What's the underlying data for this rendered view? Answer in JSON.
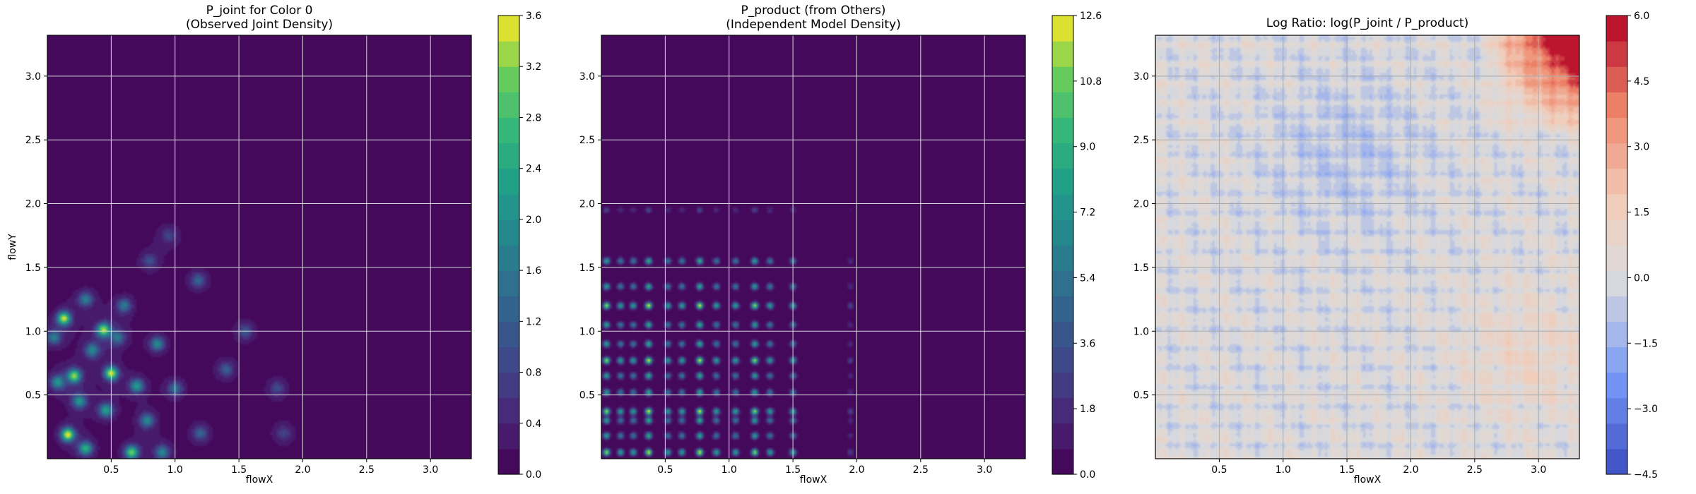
{
  "chart_data": [
    {
      "type": "heatmap",
      "title_line1": "P_joint for Color 0",
      "title_line2": "(Observed Joint Density)",
      "xlabel": "flowX",
      "ylabel": "flowY",
      "xlim": [
        0.0,
        3.32
      ],
      "ylim": [
        0.0,
        3.32
      ],
      "xticks": [
        "0.5",
        "1.0",
        "1.5",
        "2.0",
        "2.5",
        "3.0"
      ],
      "yticks": [
        "0.5",
        "1.0",
        "1.5",
        "2.0",
        "2.5",
        "3.0"
      ],
      "grid": true,
      "colormap": "viridis",
      "colorbar_range": [
        0.0,
        3.6
      ],
      "colorbar_ticks": [
        "0.0",
        "0.4",
        "0.8",
        "1.2",
        "1.6",
        "2.0",
        "2.4",
        "2.8",
        "3.2",
        "3.6"
      ],
      "peaks": [
        {
          "x": 0.13,
          "y": 1.1,
          "v": 3.2
        },
        {
          "x": 0.44,
          "y": 1.01,
          "v": 3.0
        },
        {
          "x": 0.21,
          "y": 0.65,
          "v": 2.9
        },
        {
          "x": 0.5,
          "y": 0.67,
          "v": 3.3
        },
        {
          "x": 0.16,
          "y": 0.19,
          "v": 3.4
        },
        {
          "x": 0.66,
          "y": 0.05,
          "v": 2.8
        },
        {
          "x": 0.3,
          "y": 0.08,
          "v": 2.2
        },
        {
          "x": 0.46,
          "y": 0.38,
          "v": 2.0
        },
        {
          "x": 0.7,
          "y": 0.57,
          "v": 1.9
        },
        {
          "x": 0.86,
          "y": 0.9,
          "v": 1.6
        },
        {
          "x": 0.08,
          "y": 0.6,
          "v": 1.7
        },
        {
          "x": 0.35,
          "y": 0.85,
          "v": 1.5
        },
        {
          "x": 0.3,
          "y": 1.25,
          "v": 1.4
        },
        {
          "x": 0.6,
          "y": 1.2,
          "v": 1.3
        },
        {
          "x": 0.78,
          "y": 0.3,
          "v": 1.6
        },
        {
          "x": 1.0,
          "y": 0.55,
          "v": 1.2
        },
        {
          "x": 1.18,
          "y": 1.4,
          "v": 1.0
        },
        {
          "x": 1.4,
          "y": 0.7,
          "v": 0.9
        },
        {
          "x": 1.55,
          "y": 1.0,
          "v": 0.8
        },
        {
          "x": 1.2,
          "y": 0.2,
          "v": 1.0
        },
        {
          "x": 1.8,
          "y": 0.55,
          "v": 0.6
        },
        {
          "x": 0.8,
          "y": 1.55,
          "v": 0.7
        },
        {
          "x": 0.95,
          "y": 1.75,
          "v": 0.5
        },
        {
          "x": 1.85,
          "y": 0.2,
          "v": 0.5
        },
        {
          "x": 0.05,
          "y": 0.95,
          "v": 1.4
        },
        {
          "x": 0.55,
          "y": 0.95,
          "v": 1.2
        },
        {
          "x": 0.25,
          "y": 0.45,
          "v": 1.8
        },
        {
          "x": 0.9,
          "y": 0.05,
          "v": 1.5
        }
      ]
    },
    {
      "type": "heatmap",
      "title_line1": "P_product (from Others)",
      "title_line2": "(Independent Model Density)",
      "xlabel": "flowX",
      "ylabel": "",
      "xlim": [
        0.0,
        3.32
      ],
      "ylim": [
        0.0,
        3.32
      ],
      "xticks": [
        "0.5",
        "1.0",
        "1.5",
        "2.0",
        "2.5",
        "3.0"
      ],
      "yticks": [
        "0.5",
        "1.0",
        "1.5",
        "2.0",
        "2.5",
        "3.0"
      ],
      "grid": true,
      "colormap": "viridis",
      "colorbar_range": [
        0.0,
        12.6
      ],
      "colorbar_ticks": [
        "0.0",
        "1.8",
        "3.6",
        "5.4",
        "7.2",
        "9.0",
        "10.8",
        "12.6"
      ],
      "x_marginal_peaks": [
        0.04,
        0.15,
        0.25,
        0.37,
        0.52,
        0.63,
        0.77,
        0.9,
        1.05,
        1.2,
        1.32,
        1.5,
        1.95
      ],
      "y_marginal_peaks": [
        0.05,
        0.18,
        0.3,
        0.37,
        0.52,
        0.65,
        0.77,
        0.9,
        1.05,
        1.2,
        1.35,
        1.55,
        1.95
      ]
    },
    {
      "type": "heatmap",
      "title_line1": "Log Ratio: log(P_joint / P_product)",
      "title_line2": "",
      "xlabel": "flowX",
      "ylabel": "",
      "xlim": [
        0.0,
        3.32
      ],
      "ylim": [
        0.0,
        3.32
      ],
      "xticks": [
        "0.5",
        "1.0",
        "1.5",
        "2.0",
        "2.5",
        "3.0"
      ],
      "yticks": [
        "0.5",
        "1.0",
        "1.5",
        "2.0",
        "2.5",
        "3.0"
      ],
      "grid": true,
      "colormap": "coolwarm",
      "colorbar_range": [
        -4.5,
        6.0
      ],
      "colorbar_ticks": [
        "−4.5",
        "−3.0",
        "−1.5",
        "0.0",
        "1.5",
        "3.0",
        "4.5",
        "6.0"
      ]
    }
  ]
}
